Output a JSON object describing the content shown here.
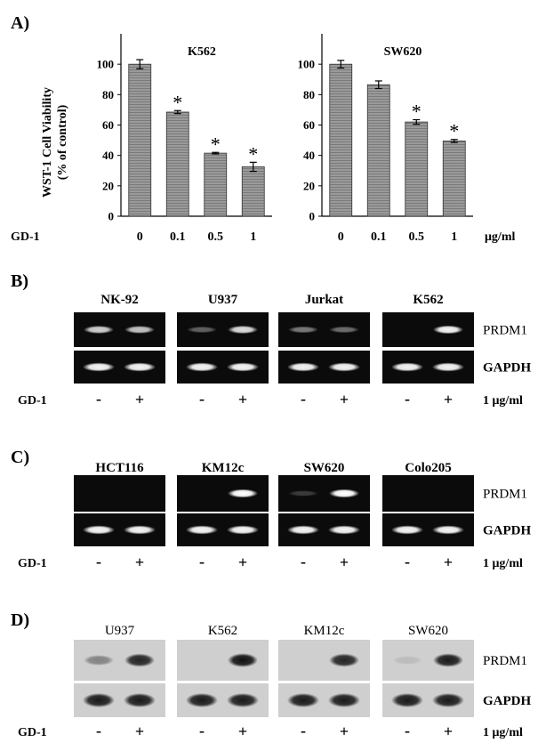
{
  "figure": {
    "panels": {
      "A": {
        "label": "A)",
        "row_label": "GD-1",
        "unit": "μg/ml",
        "ylabel_line1": "WST-1 Cell Viability",
        "ylabel_line2": "(% of control)"
      },
      "B": {
        "label": "B)",
        "cell_lines": [
          "NK-92",
          "U937",
          "Jurkat",
          "K562"
        ],
        "bands": [
          "PRDM1",
          "GAPDH"
        ],
        "prdm1_intensity": [
          [
            0.75,
            0.7
          ],
          [
            0.3,
            0.8
          ],
          [
            0.4,
            0.35
          ],
          [
            0.0,
            0.9
          ]
        ],
        "row_label": "GD-1",
        "minus": "-",
        "plus": "+",
        "dose": "1 μg/ml"
      },
      "C": {
        "label": "C)",
        "cell_lines": [
          "HCT116",
          "KM12c",
          "SW620",
          "Colo205"
        ],
        "bands": [
          "PRDM1",
          "GAPDH"
        ],
        "prdm1_intensity": [
          [
            0.0,
            0.0
          ],
          [
            0.0,
            0.95
          ],
          [
            0.15,
            0.95
          ],
          [
            0.0,
            0.0
          ]
        ],
        "row_label": "GD-1",
        "minus": "-",
        "plus": "+",
        "dose": "1 μg/ml"
      },
      "D": {
        "label": "D)",
        "cell_lines": [
          "U937",
          "K562",
          "KM12c",
          "SW620"
        ],
        "bands": [
          "PRDM1",
          "GAPDH"
        ],
        "prdm1_intensity": [
          [
            0.35,
            0.85
          ],
          [
            0.0,
            0.95
          ],
          [
            0.0,
            0.85
          ],
          [
            0.05,
            0.9
          ]
        ],
        "row_label": "GD-1",
        "minus": "-",
        "plus": "+",
        "dose": "1 μg/ml"
      }
    }
  },
  "chart_data": [
    {
      "type": "bar",
      "title": "K562",
      "categories": [
        "0",
        "0.1",
        "0.5",
        "1"
      ],
      "values": [
        100,
        68.5,
        41.5,
        32.5
      ],
      "errors": [
        3,
        1,
        0.5,
        3
      ],
      "significance": [
        "",
        "*",
        "*",
        "*"
      ],
      "ylim": [
        0,
        120
      ],
      "yticks": [
        0,
        20,
        40,
        60,
        80,
        100
      ],
      "ylabel": "WST-1 Cell Viability (% of control)",
      "xlabel": "GD-1",
      "bar_color": "#8c8c8c"
    },
    {
      "type": "bar",
      "title": "SW620",
      "categories": [
        "0",
        "0.1",
        "0.5",
        "1"
      ],
      "values": [
        100,
        86.5,
        62,
        49.5
      ],
      "errors": [
        2.5,
        2.5,
        1.5,
        1
      ],
      "significance": [
        "",
        "",
        "*",
        "*"
      ],
      "ylim": [
        0,
        120
      ],
      "yticks": [
        0,
        20,
        40,
        60,
        80,
        100
      ],
      "xlabel": "GD-1",
      "bar_color": "#8c8c8c"
    }
  ]
}
